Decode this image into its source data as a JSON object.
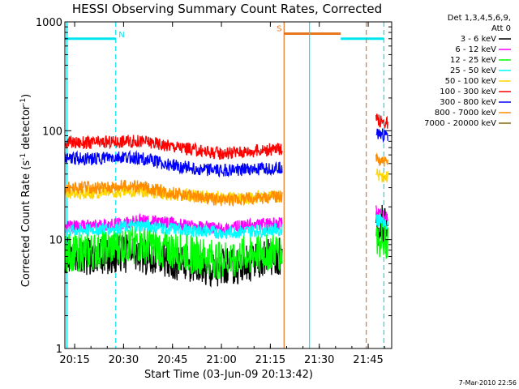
{
  "chart_data": {
    "type": "line",
    "title": "HESSI Observing Summary Count Rates, Corrected",
    "xlabel": "Start Time (03-Jun-09 20:13:42)",
    "ylabel_main": "Corrected Count Rate (s",
    "ylabel_sup1": "-1",
    "ylabel_mid": " detector",
    "ylabel_sup2": "-1",
    "ylabel_end": ")",
    "footer": "7-Mar-2010 22:56",
    "yscale": "log",
    "ylim": [
      1,
      1000
    ],
    "xlim_minutes": [
      20.2,
      21.87
    ],
    "x_ticks": [
      {
        "label": "20:15",
        "t": 20.25
      },
      {
        "label": "20:30",
        "t": 20.5
      },
      {
        "label": "20:45",
        "t": 20.75
      },
      {
        "label": "21:00",
        "t": 21.0
      },
      {
        "label": "21:15",
        "t": 21.25
      },
      {
        "label": "21:30",
        "t": 21.5
      },
      {
        "label": "21:45",
        "t": 21.75
      }
    ],
    "y_ticks": [
      {
        "label": "1",
        "v": 1
      },
      {
        "label": "10",
        "v": 10
      },
      {
        "label": "100",
        "v": 100
      },
      {
        "label": "1000",
        "v": 1000
      }
    ],
    "legend_header": [
      "Det 1,3,4,5,6,9,",
      "Att 0"
    ],
    "series": [
      {
        "name": "3 - 6 keV",
        "color": "#000000",
        "segments": [
          {
            "t": [
              20.2,
              20.3,
              20.4,
              20.5,
              20.6,
              20.75,
              20.9,
              21.0,
              21.1,
              21.2,
              21.3,
              21.31
            ],
            "v": [
              7,
              7.2,
              7,
              7.5,
              7.2,
              6.5,
              5.5,
              5.5,
              5.8,
              6.5,
              7,
              7
            ]
          },
          {
            "t": [
              21.79,
              21.8,
              21.82,
              21.85
            ],
            "v": [
              14,
              13,
              14,
              12
            ]
          }
        ]
      },
      {
        "name": "6 - 12 keV",
        "color": "#ff00ff",
        "segments": [
          {
            "t": [
              20.2,
              20.35,
              20.5,
              20.6,
              20.75,
              20.9,
              21.0,
              21.15,
              21.31
            ],
            "v": [
              13,
              13.5,
              14,
              15,
              14,
              13,
              12.5,
              13.5,
              14
            ]
          },
          {
            "t": [
              21.79,
              21.82,
              21.85
            ],
            "v": [
              18,
              17,
              16
            ]
          }
        ]
      },
      {
        "name": "12 - 25 keV",
        "color": "#00ff00",
        "segments": [
          {
            "t": [
              20.2,
              20.35,
              20.5,
              20.6,
              20.75,
              20.9,
              21.0,
              21.15,
              21.31
            ],
            "v": [
              7.5,
              7.8,
              9,
              9,
              8,
              7,
              6.5,
              7.5,
              8
            ]
          },
          {
            "t": [
              21.79,
              21.82,
              21.85
            ],
            "v": [
              11,
              10,
              10
            ]
          }
        ]
      },
      {
        "name": "25 - 50 keV",
        "color": "#00ffff",
        "segments": [
          {
            "t": [
              20.2,
              20.35,
              20.5,
              20.6,
              20.75,
              20.9,
              21.0,
              21.15,
              21.31
            ],
            "v": [
              12,
              12.5,
              13,
              13.5,
              12.5,
              12,
              11.5,
              12,
              12.5
            ]
          },
          {
            "t": [
              21.79,
              21.82,
              21.85
            ],
            "v": [
              15,
              14.5,
              14
            ]
          }
        ]
      },
      {
        "name": "50 - 100 keV",
        "color": "#ffd700",
        "segments": [
          {
            "t": [
              20.2,
              20.35,
              20.5,
              20.6,
              20.75,
              20.9,
              21.0,
              21.15,
              21.31
            ],
            "v": [
              27,
              27,
              28,
              28,
              26,
              25,
              24,
              24.5,
              25
            ]
          },
          {
            "t": [
              21.79,
              21.82,
              21.85
            ],
            "v": [
              40,
              38,
              37
            ]
          }
        ]
      },
      {
        "name": "100 - 300 keV",
        "color": "#ff0000",
        "segments": [
          {
            "t": [
              20.2,
              20.35,
              20.5,
              20.6,
              20.75,
              20.9,
              21.0,
              21.15,
              21.31
            ],
            "v": [
              78,
              77,
              80,
              80,
              72,
              65,
              62,
              65,
              68
            ]
          },
          {
            "t": [
              21.79,
              21.82,
              21.85
            ],
            "v": [
              125,
              122,
              118
            ]
          }
        ]
      },
      {
        "name": "300 - 800 keV",
        "color": "#0000ff",
        "segments": [
          {
            "t": [
              20.2,
              20.35,
              20.5,
              20.6,
              20.75,
              20.9,
              21.0,
              21.15,
              21.31
            ],
            "v": [
              56,
              55,
              57,
              55,
              48,
              44,
              43,
              44,
              46
            ]
          },
          {
            "t": [
              21.79,
              21.82,
              21.85
            ],
            "v": [
              95,
              92,
              88
            ]
          }
        ]
      },
      {
        "name": "800 - 7000 keV",
        "color": "#ff8c00",
        "segments": [
          {
            "t": [
              20.2,
              20.35,
              20.5,
              20.6,
              20.75,
              20.9,
              21.0,
              21.15,
              21.31
            ],
            "v": [
              30,
              30,
              31,
              30.5,
              27,
              24,
              23,
              24,
              25
            ]
          },
          {
            "t": [
              21.79,
              21.82,
              21.85
            ],
            "v": [
              55,
              52,
              50
            ]
          }
        ]
      },
      {
        "name": "7000 - 20000 keV",
        "color": "#8b6508",
        "segments": []
      }
    ],
    "markers": [
      {
        "kind": "solid",
        "color": "#00e5ee",
        "t": 20.21
      },
      {
        "kind": "dashed",
        "color": "#00e5ee",
        "t": 20.46
      },
      {
        "kind": "solid",
        "color": "#e87722",
        "t": 21.32
      },
      {
        "kind": "solid",
        "color": "#00e5ee",
        "t": 21.45
      },
      {
        "kind": "dashed",
        "color": "#e87722",
        "t": 21.74
      },
      {
        "kind": "dashed",
        "color": "#00e5ee",
        "t": 21.83
      }
    ],
    "top_bars": [
      {
        "color": "#00e5ee",
        "t0": 20.2,
        "t1": 20.46,
        "v": 700
      },
      {
        "color": "#e87722",
        "t0": 21.32,
        "t1": 21.61,
        "v": 780
      },
      {
        "color": "#00e5ee",
        "t0": 21.61,
        "t1": 21.83,
        "v": 700
      }
    ],
    "flags": [
      {
        "text": "N",
        "color": "#00e5ee",
        "t": 20.49,
        "v": 720
      },
      {
        "text": "S",
        "color": "#e87722",
        "t": 21.295,
        "v": 820
      }
    ]
  }
}
